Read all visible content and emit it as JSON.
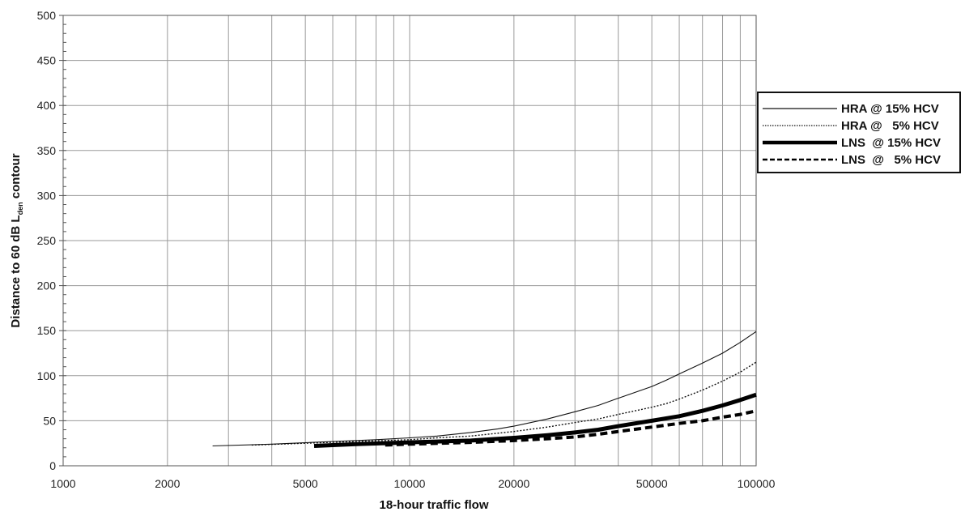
{
  "chart_data": {
    "type": "line",
    "x_scale": "log",
    "xlabel": "18-hour traffic flow",
    "ylabel_prefix": "Distance to 60 dB L",
    "ylabel_sub": "den",
    "ylabel_suffix": " contour",
    "xlim": [
      1000,
      100000
    ],
    "ylim": [
      0,
      500
    ],
    "x_tick_labels": [
      {
        "value": 1000,
        "label": "1000"
      },
      {
        "value": 2000,
        "label": "2000"
      },
      {
        "value": 5000,
        "label": "5000"
      },
      {
        "value": 10000,
        "label": "10000"
      },
      {
        "value": 20000,
        "label": "20000"
      },
      {
        "value": 50000,
        "label": "50000"
      },
      {
        "value": 100000,
        "label": "100000"
      }
    ],
    "x_gridlines": [
      1000,
      2000,
      3000,
      4000,
      5000,
      6000,
      7000,
      8000,
      9000,
      10000,
      20000,
      30000,
      40000,
      50000,
      60000,
      70000,
      80000,
      90000,
      100000
    ],
    "y_ticks": [
      0,
      50,
      100,
      150,
      200,
      250,
      300,
      350,
      400,
      450,
      500
    ],
    "grid": true,
    "legend_position": "right",
    "series": [
      {
        "name": "HRA @ 15% HCV",
        "style": "thin-solid",
        "x": [
          2700,
          4000,
          6000,
          8000,
          10000,
          12000,
          15000,
          18000,
          20000,
          25000,
          30000,
          35000,
          40000,
          50000,
          55000,
          60000,
          70000,
          80000,
          90000,
          100000
        ],
        "y": [
          22,
          24,
          27,
          29,
          31,
          33,
          37,
          41,
          44,
          52,
          60,
          67,
          75,
          88,
          95,
          102,
          114,
          125,
          137,
          149
        ]
      },
      {
        "name": "HRA @   5% HCV",
        "style": "dotted",
        "x": [
          3500,
          5000,
          7000,
          10000,
          12000,
          15000,
          20000,
          25000,
          30000,
          35000,
          40000,
          50000,
          55000,
          60000,
          70000,
          80000,
          90000,
          100000
        ],
        "y": [
          23,
          25,
          27,
          29,
          31,
          33,
          38,
          43,
          48,
          52,
          57,
          65,
          69,
          74,
          84,
          94,
          104,
          115
        ]
      },
      {
        "name": "LNS  @ 15% HCV",
        "style": "thick-solid",
        "x": [
          5300,
          7000,
          10000,
          15000,
          20000,
          25000,
          30000,
          35000,
          40000,
          50000,
          60000,
          70000,
          80000,
          90000,
          100000
        ],
        "y": [
          22,
          24,
          26,
          28,
          31,
          34,
          37,
          40,
          44,
          50,
          55,
          61,
          67,
          73,
          79
        ]
      },
      {
        "name": "LNS  @   5% HCV",
        "style": "dashed",
        "x": [
          8500,
          10000,
          15000,
          20000,
          25000,
          30000,
          35000,
          40000,
          50000,
          60000,
          70000,
          80000,
          90000,
          100000
        ],
        "y": [
          23,
          24,
          26,
          28,
          30,
          32,
          35,
          38,
          43,
          47,
          50,
          54,
          57,
          61
        ]
      }
    ]
  }
}
